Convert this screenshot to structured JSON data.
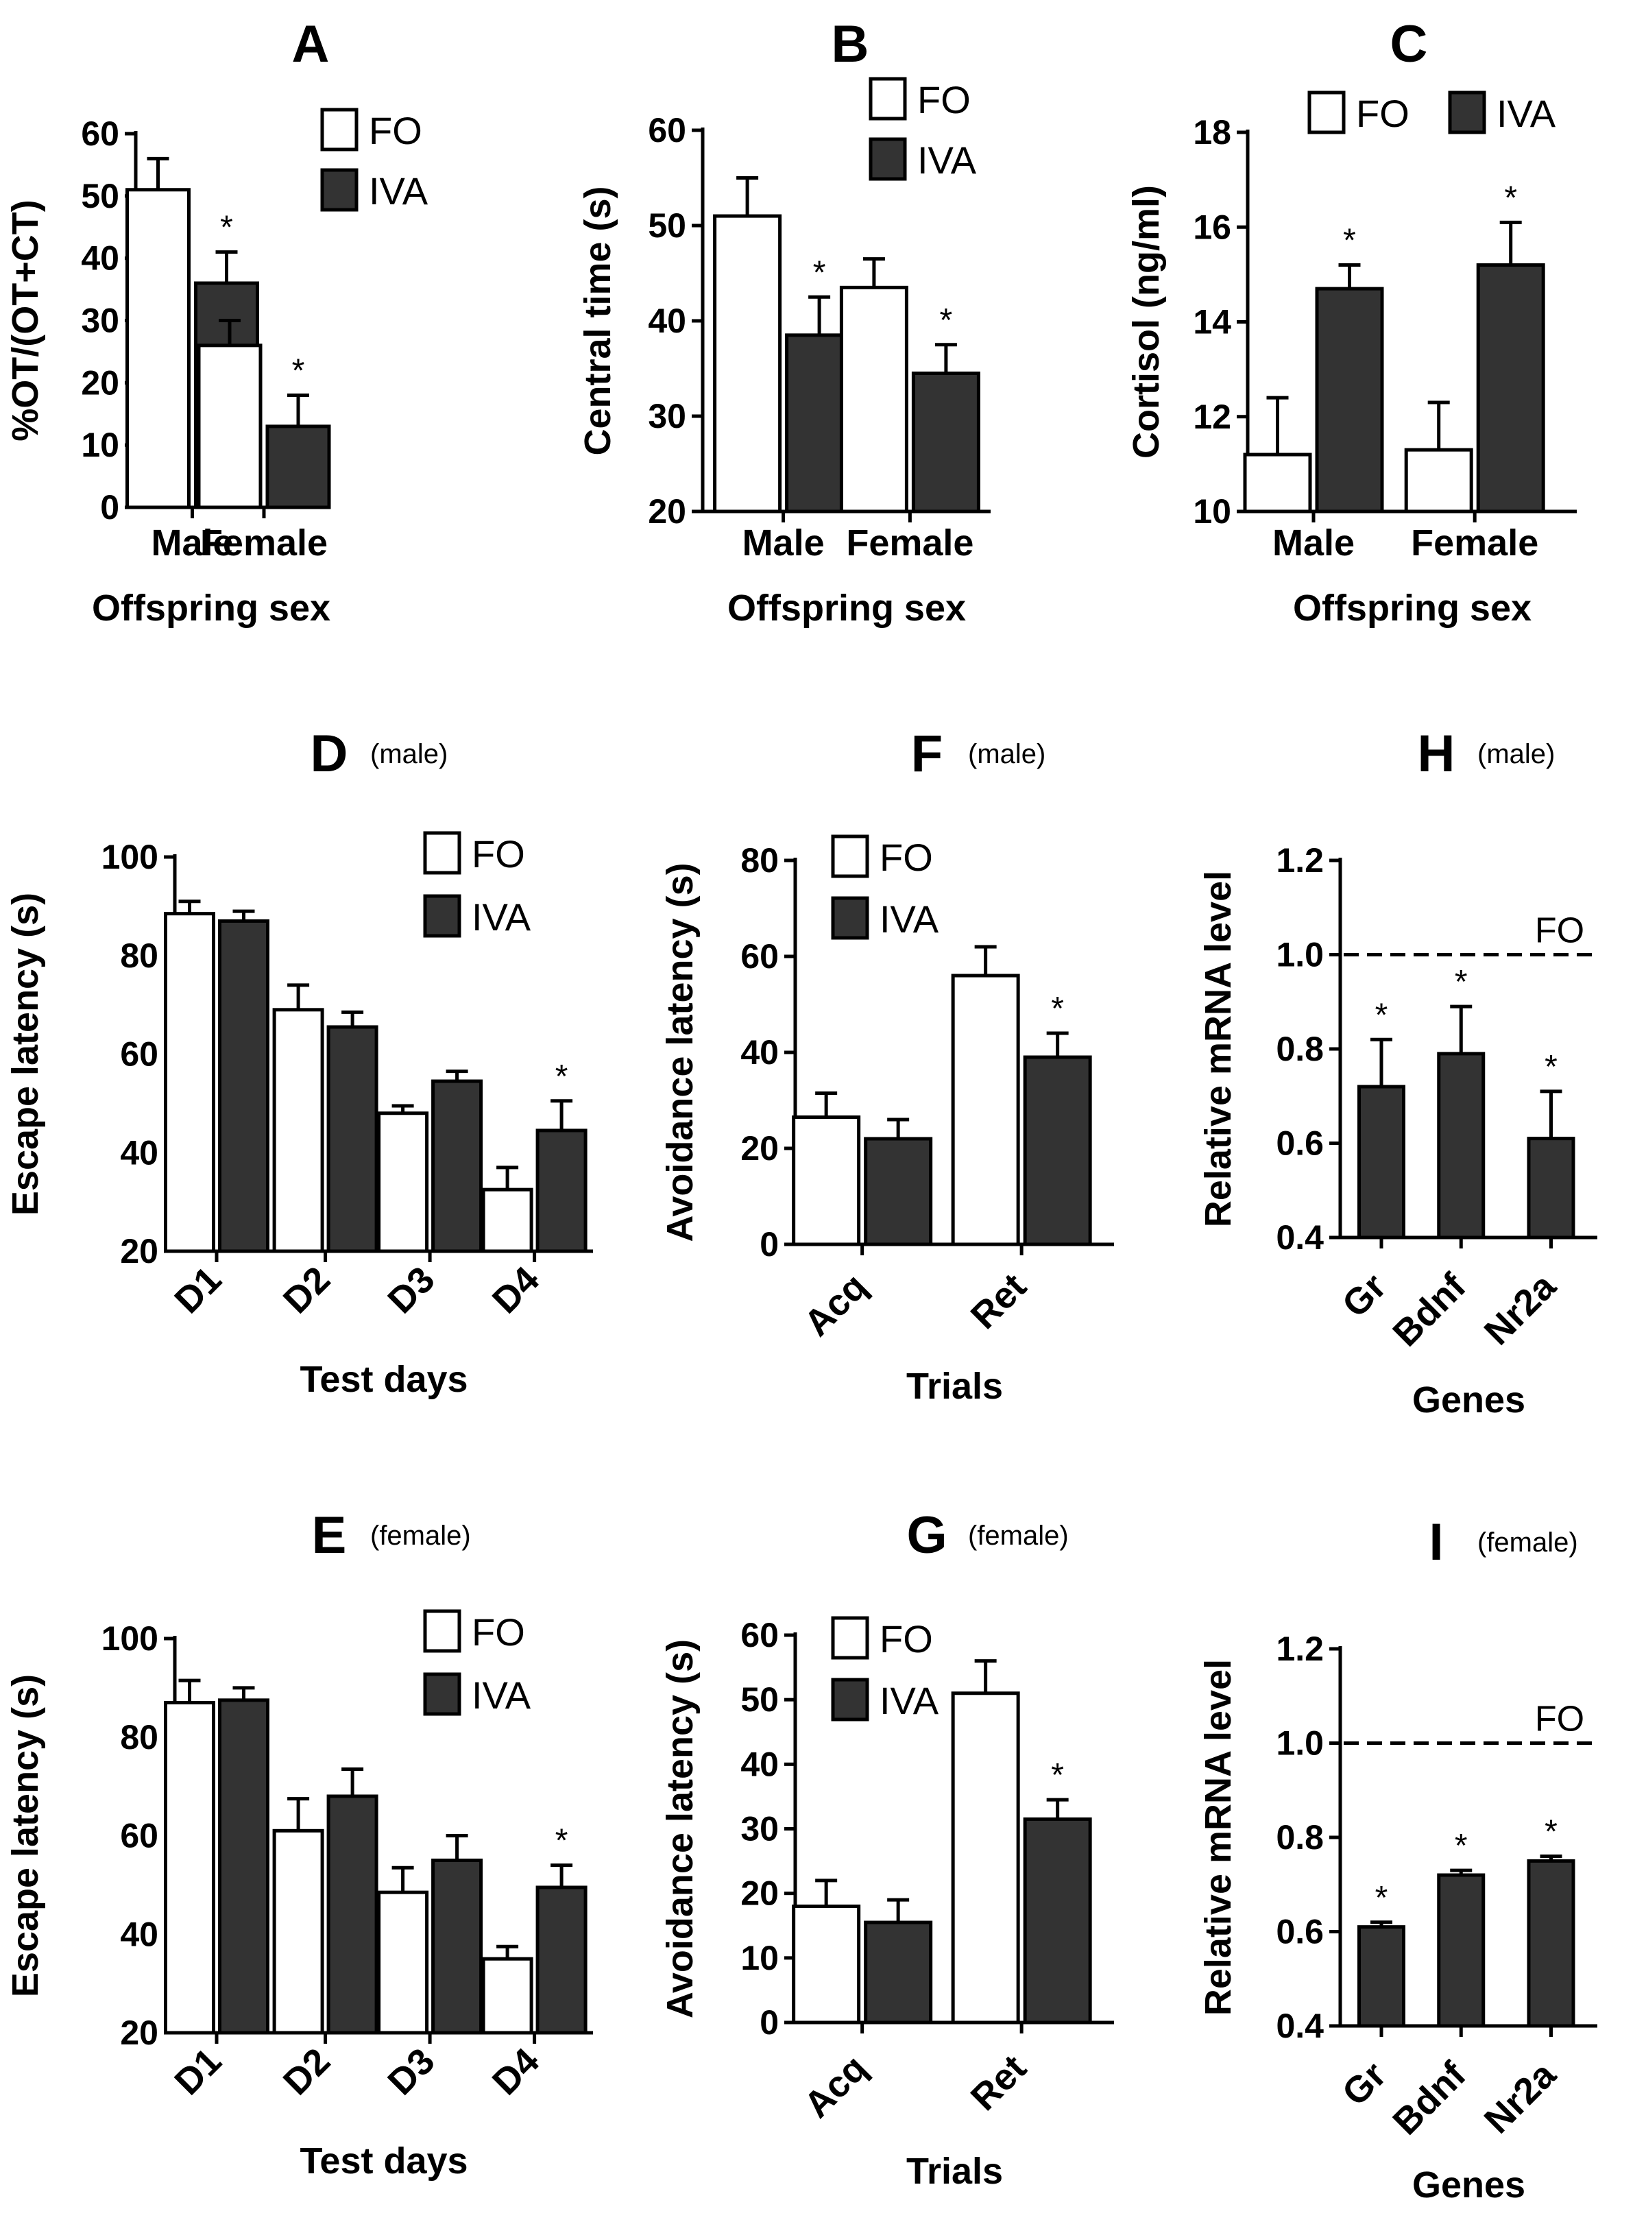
{
  "figure": {
    "background": "#ffffff",
    "bar_colors": {
      "FO": "#ffffff",
      "IVA": "#333333"
    }
  },
  "chart_data": [
    {
      "id": "A",
      "type": "bar",
      "title": "A",
      "subtitle": "",
      "xlabel": "Offspring sex",
      "ylabel": "%OT/(OT+CT)",
      "ylim": [
        0,
        60
      ],
      "yticks": [
        0,
        10,
        20,
        30,
        40,
        50,
        60
      ],
      "categories": [
        "Male",
        "Female"
      ],
      "series": [
        {
          "name": "FO",
          "values": [
            51,
            26
          ],
          "errors": [
            5,
            4
          ],
          "significant": [
            false,
            false
          ]
        },
        {
          "name": "IVA",
          "values": [
            36,
            13
          ],
          "errors": [
            5,
            5
          ],
          "significant": [
            true,
            true
          ]
        }
      ],
      "legend": "top-right",
      "star_symbol": "*"
    },
    {
      "id": "B",
      "type": "bar",
      "title": "B",
      "subtitle": "",
      "xlabel": "Offspring sex",
      "ylabel": "Central time (s)",
      "ylim": [
        20,
        60
      ],
      "yticks": [
        20,
        30,
        40,
        50,
        60
      ],
      "categories": [
        "Male",
        "Female"
      ],
      "series": [
        {
          "name": "FO",
          "values": [
            51,
            43.5
          ],
          "errors": [
            4,
            3
          ],
          "significant": [
            false,
            false
          ]
        },
        {
          "name": "IVA",
          "values": [
            38.5,
            34.5
          ],
          "errors": [
            4,
            3
          ],
          "significant": [
            true,
            true
          ]
        }
      ],
      "legend": "top-right",
      "star_symbol": "*"
    },
    {
      "id": "C",
      "type": "bar",
      "title": "C",
      "subtitle": "",
      "xlabel": "Offspring sex",
      "ylabel": "Cortisol (ng/ml)",
      "ylim": [
        10,
        18
      ],
      "yticks": [
        10,
        12,
        14,
        16,
        18
      ],
      "categories": [
        "Male",
        "Female"
      ],
      "series": [
        {
          "name": "FO",
          "values": [
            11.2,
            11.3
          ],
          "errors": [
            1.2,
            1.0
          ],
          "significant": [
            false,
            false
          ]
        },
        {
          "name": "IVA",
          "values": [
            14.7,
            15.2
          ],
          "errors": [
            0.5,
            0.9
          ],
          "significant": [
            true,
            true
          ]
        }
      ],
      "legend": "top",
      "star_symbol": "*"
    },
    {
      "id": "D",
      "type": "bar",
      "title": "D",
      "subtitle": "(male)",
      "xlabel": "Test days",
      "ylabel": "Escape latency (s)",
      "ylim": [
        20,
        100
      ],
      "yticks": [
        20,
        40,
        60,
        80,
        100
      ],
      "categories": [
        "D1",
        "D2",
        "D3",
        "D4"
      ],
      "series": [
        {
          "name": "FO",
          "values": [
            88.5,
            69,
            48,
            32.5
          ],
          "errors": [
            2.5,
            5,
            1.5,
            4.5
          ],
          "significant": [
            false,
            false,
            false,
            false
          ]
        },
        {
          "name": "IVA",
          "values": [
            87,
            65.5,
            54.5,
            44.5
          ],
          "errors": [
            2,
            3,
            2,
            6
          ],
          "significant": [
            false,
            false,
            false,
            true
          ]
        }
      ],
      "legend": "top-right",
      "star_symbol": "*"
    },
    {
      "id": "F",
      "type": "bar",
      "title": "F",
      "subtitle": "(male)",
      "xlabel": "Trials",
      "ylabel": "Avoidance latency (s)",
      "ylim": [
        0,
        80
      ],
      "yticks": [
        0,
        20,
        40,
        60,
        80
      ],
      "categories": [
        "Acq",
        "Ret"
      ],
      "series": [
        {
          "name": "FO",
          "values": [
            26.5,
            56
          ],
          "errors": [
            5,
            6
          ],
          "significant": [
            false,
            false
          ]
        },
        {
          "name": "IVA",
          "values": [
            22,
            39
          ],
          "errors": [
            4,
            5
          ],
          "significant": [
            false,
            true
          ]
        }
      ],
      "legend": "top-left",
      "star_symbol": "*"
    },
    {
      "id": "H",
      "type": "bar",
      "title": "H",
      "subtitle": "(male)",
      "xlabel": "Genes",
      "ylabel": "Relative mRNA level",
      "ylim": [
        0.4,
        1.2
      ],
      "yticks": [
        0.4,
        0.6,
        0.8,
        1.0,
        1.2
      ],
      "categories": [
        "Gr",
        "Bdnf",
        "Nr2a"
      ],
      "series": [
        {
          "name": "IVA",
          "values": [
            0.72,
            0.79,
            0.61
          ],
          "errors": [
            0.1,
            0.1,
            0.1
          ],
          "significant": [
            true,
            true,
            true
          ]
        }
      ],
      "reference_line": {
        "value": 1.0,
        "label": "FO"
      },
      "star_symbol": "*"
    },
    {
      "id": "E",
      "type": "bar",
      "title": "E",
      "subtitle": "(female)",
      "xlabel": "Test days",
      "ylabel": "Escape latency (s)",
      "ylim": [
        20,
        100
      ],
      "yticks": [
        20,
        40,
        60,
        80,
        100
      ],
      "categories": [
        "D1",
        "D2",
        "D3",
        "D4"
      ],
      "series": [
        {
          "name": "FO",
          "values": [
            87,
            61,
            48.5,
            35
          ],
          "errors": [
            4.5,
            6.5,
            5,
            2.5
          ],
          "significant": [
            false,
            false,
            false,
            false
          ]
        },
        {
          "name": "IVA",
          "values": [
            87.5,
            68,
            55,
            49.5
          ],
          "errors": [
            2.5,
            5.5,
            5,
            4.5
          ],
          "significant": [
            false,
            false,
            false,
            true
          ]
        }
      ],
      "legend": "top-right",
      "star_symbol": "*"
    },
    {
      "id": "G",
      "type": "bar",
      "title": "G",
      "subtitle": "(female)",
      "xlabel": "Trials",
      "ylabel": "Avoidance latency (s)",
      "ylim": [
        0,
        60
      ],
      "yticks": [
        0,
        10,
        20,
        30,
        40,
        50,
        60
      ],
      "categories": [
        "Acq",
        "Ret"
      ],
      "series": [
        {
          "name": "FO",
          "values": [
            18,
            51
          ],
          "errors": [
            4,
            5
          ],
          "significant": [
            false,
            false
          ]
        },
        {
          "name": "IVA",
          "values": [
            15.5,
            31.5
          ],
          "errors": [
            3.5,
            3
          ],
          "significant": [
            false,
            true
          ]
        }
      ],
      "legend": "top-left",
      "star_symbol": "*"
    },
    {
      "id": "I",
      "type": "bar",
      "title": "I",
      "subtitle": "(female)",
      "xlabel": "Genes",
      "ylabel": "Relative mRNA level",
      "ylim": [
        0.4,
        1.2
      ],
      "yticks": [
        0.4,
        0.6,
        0.8,
        1.0,
        1.2
      ],
      "categories": [
        "Gr",
        "Bdnf",
        "Nr2a"
      ],
      "series": [
        {
          "name": "IVA",
          "values": [
            0.61,
            0.72,
            0.75
          ],
          "errors": [
            0.01,
            0.01,
            0.01
          ],
          "significant": [
            true,
            true,
            true
          ]
        }
      ],
      "reference_line": {
        "value": 1.0,
        "label": "FO"
      },
      "star_symbol": "*"
    }
  ]
}
